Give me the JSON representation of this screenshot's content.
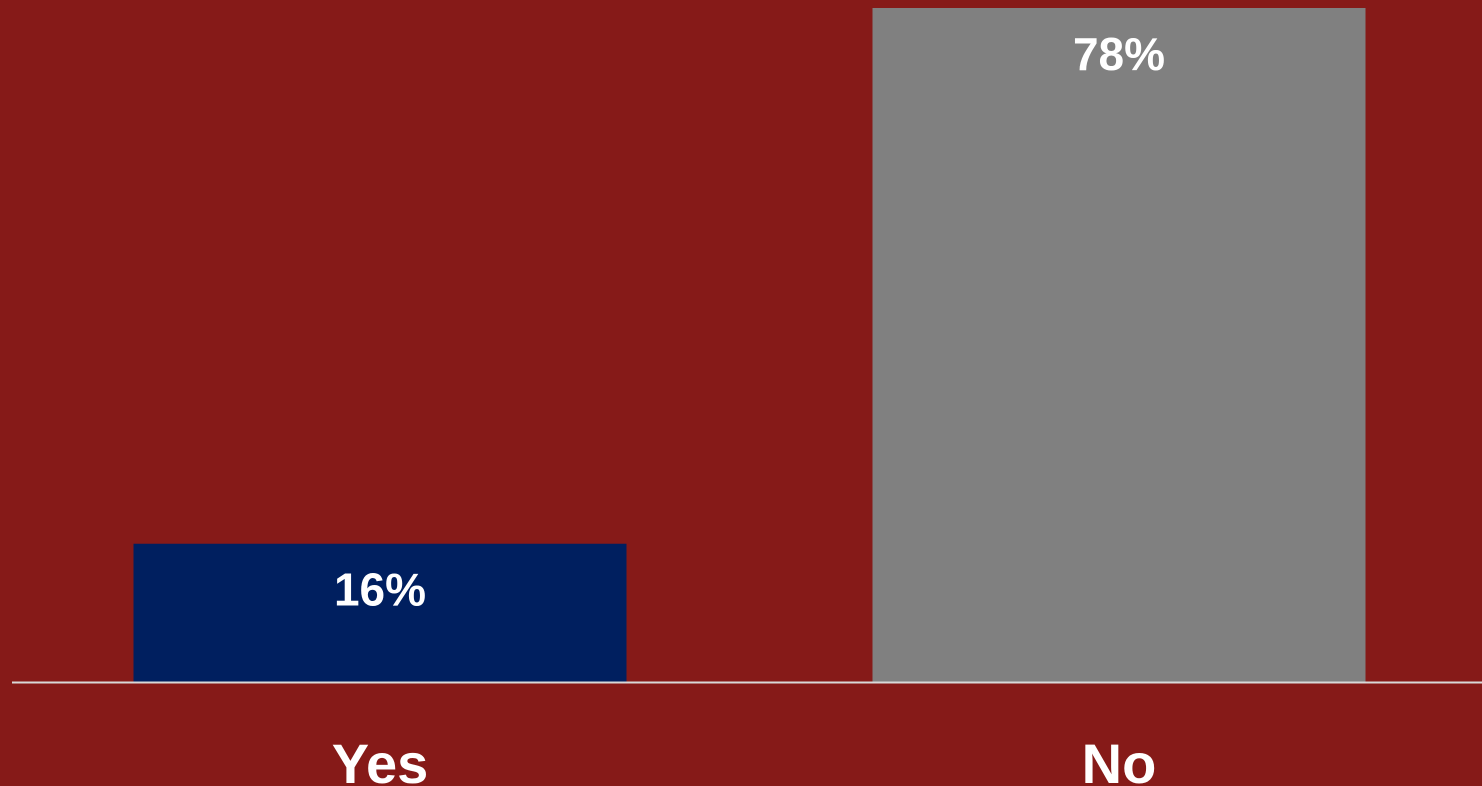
{
  "colors": {
    "background": "#861a18",
    "axis_line": "#d9d9d9"
  },
  "chart_data": {
    "type": "bar",
    "categories": [
      "Yes",
      "No"
    ],
    "values": [
      16,
      78
    ],
    "data_labels": [
      "16%",
      "78%"
    ],
    "bar_colors": [
      "#001f5f",
      "#808080"
    ],
    "ylim": [
      0,
      78
    ],
    "grid": false,
    "legend": "none"
  }
}
